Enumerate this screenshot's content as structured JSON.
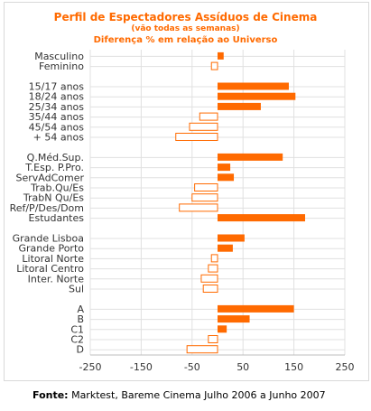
{
  "chart_data": {
    "type": "bar",
    "orientation": "horizontal",
    "title": "Perfil de Espectadores Assíduos de Cinema",
    "subtitle": "(vão todas as semanas)",
    "subtitle2": "Diferença % em relação ao Universo",
    "xlim": [
      -250,
      250
    ],
    "xticks": [
      -250,
      -150,
      -50,
      50,
      150,
      250
    ],
    "grid": true,
    "legend": "none",
    "colors": {
      "positive": "#ff6a00",
      "negative_fill": "#ffffff",
      "negative_stroke": "#ff6a00",
      "grid": "#e0e0e0",
      "text": "#333333",
      "title": "#ff6a00"
    },
    "groups": [
      {
        "categories": [
          "Masculino",
          "Feminino"
        ],
        "values": [
          12,
          -12
        ]
      },
      {
        "categories": [
          "15/17 anos",
          "18/24 anos",
          "25/34 anos",
          "35/44 anos",
          "45/54 anos",
          "+ 54 anos"
        ],
        "values": [
          140,
          153,
          85,
          -35,
          -55,
          -82
        ]
      },
      {
        "categories": [
          "Q.Méd.Sup.",
          "T.Esp. P.Pro.",
          "ServAdComer",
          "Trab.Qu/Es",
          "TrabN Qu/Es",
          "Ref/P/Des/Dom",
          "Estudantes"
        ],
        "values": [
          128,
          25,
          32,
          -45,
          -50,
          -75,
          172
        ]
      },
      {
        "categories": [
          "Grande Lisboa",
          "Grande Porto",
          "Litoral Norte",
          "Litoral Centro",
          "Inter. Norte",
          "Sul"
        ],
        "values": [
          53,
          30,
          -12,
          -18,
          -32,
          -28
        ]
      },
      {
        "categories": [
          "A",
          "B",
          "C1",
          "C2",
          "D"
        ],
        "values": [
          150,
          63,
          18,
          -18,
          -60
        ]
      }
    ]
  },
  "source": {
    "label": "Fonte:",
    "text": "Marktest, Bareme Cinema Julho 2006 a Junho 2007"
  }
}
